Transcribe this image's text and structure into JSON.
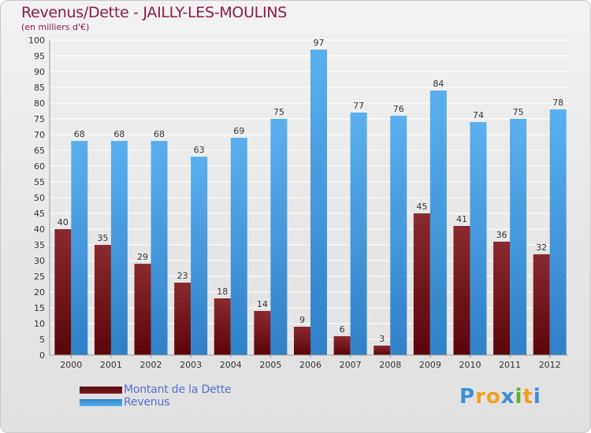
{
  "chart_data": {
    "type": "bar",
    "title": "Revenus/Dette - JAILLY-LES-MOULINS",
    "subtitle": "(en milliers d'€)",
    "xlabel": "",
    "ylabel": "",
    "ylim": [
      0,
      100
    ],
    "ytick_step": 5,
    "grid": true,
    "categories": [
      "2000",
      "2001",
      "2002",
      "2003",
      "2004",
      "2005",
      "2006",
      "2007",
      "2008",
      "2009",
      "2010",
      "2011",
      "2012"
    ],
    "series": [
      {
        "name": "Montant de la Dette",
        "color": "#7a1a1f",
        "values": [
          40,
          35,
          29,
          23,
          18,
          14,
          9,
          6,
          3,
          45,
          41,
          36,
          32
        ]
      },
      {
        "name": "Revenus",
        "color": "#4aa3e6",
        "values": [
          68,
          68,
          68,
          63,
          69,
          75,
          97,
          77,
          76,
          84,
          74,
          75,
          78
        ]
      }
    ],
    "legend_position": "bottom-left"
  },
  "branding": {
    "logo_letters": [
      "P",
      "r",
      "o",
      "x",
      "i",
      "t",
      "i"
    ],
    "logo_colors": [
      "#3a8fd8",
      "#f0a020",
      "#f0a020",
      "#3a8fd8",
      "#5cb030",
      "#f0a020",
      "#3a8fd8"
    ]
  }
}
